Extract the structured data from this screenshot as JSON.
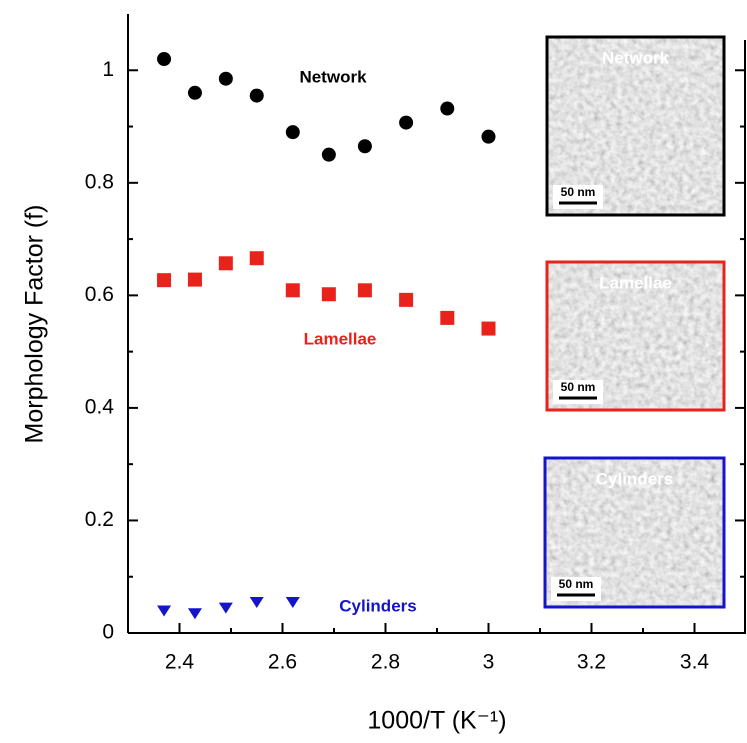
{
  "chart_data": {
    "type": "scatter",
    "y_label": "Morphology Factor (f)",
    "x_label": "1000/T (K⁻¹)",
    "xlim": [
      2.3,
      3.5
    ],
    "ylim": [
      0,
      1.1
    ],
    "xticks": [
      2.4,
      2.6,
      2.8,
      3,
      3.2,
      3.4
    ],
    "yticks": [
      0,
      0.2,
      0.4,
      0.6,
      0.8,
      1
    ],
    "series": [
      {
        "name": "Network",
        "color": "#000000",
        "marker": "circle",
        "x": [
          2.37,
          2.43,
          2.49,
          2.55,
          2.62,
          2.69,
          2.76,
          2.84,
          2.92,
          3.0
        ],
        "values": [
          1.02,
          0.96,
          0.985,
          0.955,
          0.89,
          0.85,
          0.865,
          0.907,
          0.932,
          0.882
        ]
      },
      {
        "name": "Lamellae",
        "color": "#e8231c",
        "marker": "square",
        "x": [
          2.37,
          2.43,
          2.49,
          2.55,
          2.62,
          2.69,
          2.76,
          2.84,
          2.92,
          3.0
        ],
        "values": [
          0.627,
          0.628,
          0.657,
          0.666,
          0.609,
          0.602,
          0.609,
          0.592,
          0.56,
          0.541
        ]
      },
      {
        "name": "Cylinders",
        "color": "#1414c8",
        "marker": "triangle-down",
        "x": [
          2.37,
          2.43,
          2.49,
          2.55,
          2.62
        ],
        "values": [
          0.04,
          0.035,
          0.045,
          0.055,
          0.055
        ]
      }
    ],
    "insets": [
      {
        "label": "Network",
        "scale": "50 nm",
        "color": "#000000"
      },
      {
        "label": "Lamellae",
        "scale": "50 nm",
        "color": "#e8231c"
      },
      {
        "label": "Cylinders",
        "scale": "50 nm",
        "color": "#1414c8"
      }
    ]
  }
}
